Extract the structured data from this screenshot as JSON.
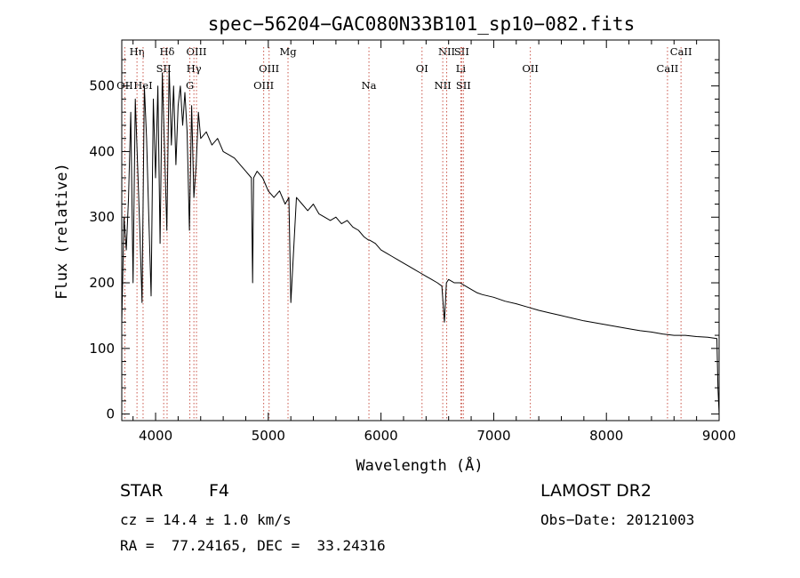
{
  "chart_data": {
    "type": "line",
    "title": "spec−56204−GAC080N33B101_sp10−082.fits",
    "xlabel": "Wavelength (Å)",
    "ylabel": "Flux (relative)",
    "xlim": [
      3700,
      9000
    ],
    "ylim": [
      -10,
      570
    ],
    "xticks": [
      4000,
      5000,
      6000,
      7000,
      8000,
      9000
    ],
    "yticks": [
      0,
      100,
      200,
      300,
      400,
      500
    ],
    "grid": false,
    "series": [
      {
        "values_x": [
          3700,
          3720,
          3740,
          3760,
          3780,
          3800,
          3820,
          3840,
          3860,
          3880,
          3900,
          3920,
          3940,
          3960,
          3980,
          4000,
          4020,
          4040,
          4060,
          4080,
          4100,
          4120,
          4140,
          4160,
          4180,
          4200,
          4220,
          4240,
          4260,
          4280,
          4300,
          4320,
          4340,
          4360,
          4380,
          4400,
          4450,
          4500,
          4550,
          4600,
          4650,
          4700,
          4750,
          4800,
          4850,
          4861,
          4870,
          4900,
          4950,
          5000,
          5050,
          5100,
          5150,
          5183,
          5200,
          5250,
          5300,
          5350,
          5400,
          5450,
          5500,
          5550,
          5600,
          5650,
          5700,
          5750,
          5800,
          5850,
          5890,
          5900,
          5950,
          6000,
          6050,
          6100,
          6150,
          6200,
          6250,
          6300,
          6350,
          6400,
          6450,
          6500,
          6540,
          6563,
          6580,
          6600,
          6650,
          6700,
          6750,
          6800,
          6850,
          6900,
          6950,
          7000,
          7100,
          7200,
          7300,
          7400,
          7500,
          7600,
          7700,
          7800,
          7900,
          8000,
          8100,
          8200,
          8300,
          8400,
          8500,
          8600,
          8700,
          8800,
          8900,
          8980,
          8990,
          9000
        ],
        "values_y": [
          140,
          300,
          250,
          330,
          460,
          200,
          480,
          380,
          280,
          170,
          500,
          420,
          300,
          180,
          480,
          360,
          500,
          260,
          520,
          400,
          280,
          530,
          410,
          500,
          380,
          470,
          500,
          440,
          490,
          430,
          280,
          470,
          330,
          380,
          460,
          420,
          430,
          410,
          420,
          400,
          395,
          390,
          380,
          370,
          360,
          200,
          360,
          370,
          360,
          340,
          330,
          340,
          320,
          330,
          170,
          330,
          320,
          310,
          320,
          305,
          300,
          295,
          300,
          290,
          295,
          285,
          280,
          270,
          265,
          265,
          260,
          250,
          245,
          240,
          235,
          230,
          225,
          220,
          215,
          210,
          205,
          200,
          195,
          140,
          200,
          205,
          200,
          200,
          195,
          190,
          185,
          182,
          180,
          178,
          172,
          168,
          163,
          158,
          154,
          150,
          146,
          142,
          139,
          136,
          133,
          130,
          127,
          125,
          122,
          120,
          120,
          118,
          117,
          115,
          40,
          0
        ]
      }
    ],
    "lines": [
      {
        "label": "Hη",
        "x": 3835,
        "row": 0
      },
      {
        "label": "OII",
        "x": 3727,
        "row": 2
      },
      {
        "label": "HeI",
        "x": 3889,
        "row": 2
      },
      {
        "label": "Hδ",
        "x": 4102,
        "row": 0
      },
      {
        "label": "SII",
        "x": 4072,
        "row": 1
      },
      {
        "label": "OIII",
        "x": 4363,
        "row": 0
      },
      {
        "label": "Hγ",
        "x": 4340,
        "row": 1
      },
      {
        "label": "G",
        "x": 4304,
        "row": 2
      },
      {
        "label": "Mg",
        "x": 5175,
        "row": 0
      },
      {
        "label": "OIII",
        "x": 5007,
        "row": 1
      },
      {
        "label": "OIII",
        "x": 4959,
        "row": 2
      },
      {
        "label": "Na",
        "x": 5893,
        "row": 2
      },
      {
        "label": "OI",
        "x": 6364,
        "row": 1
      },
      {
        "label": "NII",
        "x": 6583,
        "row": 0
      },
      {
        "label": "SII",
        "x": 6716,
        "row": 0
      },
      {
        "label": "Li",
        "x": 6708,
        "row": 1
      },
      {
        "label": "NII",
        "x": 6548,
        "row": 2
      },
      {
        "label": "SII",
        "x": 6731,
        "row": 2
      },
      {
        "label": "OII",
        "x": 7325,
        "row": 1
      },
      {
        "label": "CaII",
        "x": 8662,
        "row": 0
      },
      {
        "label": "CaII",
        "x": 8542,
        "row": 1
      }
    ]
  },
  "info": {
    "class": "STAR",
    "subclass": "F4",
    "survey": "LAMOST DR2",
    "cz": "cz = 14.4 ± 1.0 km/s",
    "obsdate": "Obs−Date: 20121003",
    "coords": "RA =  77.24165, DEC =  33.24316"
  }
}
